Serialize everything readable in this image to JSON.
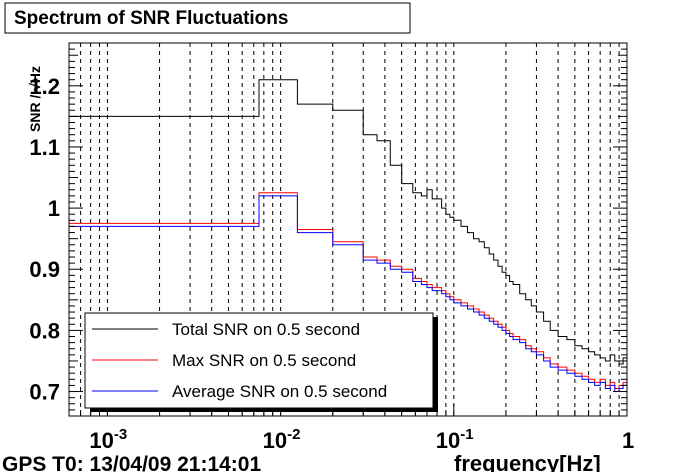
{
  "title": "Spectrum of SNR Fluctuations",
  "footer": {
    "gps": "GPS T0: 13/04/09 21:14:01"
  },
  "chart_data": {
    "type": "line",
    "title": "Spectrum of SNR Fluctuations",
    "xlabel": "frequency[Hz]",
    "ylabel": "SNR / √Hz",
    "xscale": "log",
    "xlim": [
      0.0006,
      1
    ],
    "ylim": [
      0.66,
      1.27
    ],
    "grid": "vertical-dashed",
    "legend_position": "bottom-left",
    "x_ticks": [
      {
        "value": 0.001,
        "base": "10",
        "exp": "-3"
      },
      {
        "value": 0.01,
        "base": "10",
        "exp": "-2"
      },
      {
        "value": 0.1,
        "base": "10",
        "exp": "-1"
      },
      {
        "value": 1,
        "base": "1",
        "exp": ""
      }
    ],
    "y_ticks": [
      {
        "value": 0.7,
        "label": "0.7"
      },
      {
        "value": 0.8,
        "label": "0.8"
      },
      {
        "value": 0.9,
        "label": "0.9"
      },
      {
        "value": 1.0,
        "label": "1"
      },
      {
        "value": 1.1,
        "label": "1.1"
      },
      {
        "value": 1.2,
        "label": "1.2"
      }
    ],
    "series": [
      {
        "name": "Total SNR on 0.5 second",
        "color": "#000000",
        "x": [
          0.0006,
          0.0075,
          0.0125,
          0.02,
          0.03,
          0.036,
          0.043,
          0.05,
          0.058,
          0.065,
          0.07,
          0.075,
          0.085,
          0.09,
          0.095,
          0.1,
          0.11,
          0.12,
          0.13,
          0.14,
          0.15,
          0.16,
          0.17,
          0.18,
          0.19,
          0.2,
          0.21,
          0.22,
          0.24,
          0.26,
          0.28,
          0.3,
          0.33,
          0.36,
          0.4,
          0.45,
          0.5,
          0.55,
          0.6,
          0.65,
          0.7,
          0.75,
          0.8,
          0.85,
          0.9,
          0.95,
          1.0
        ],
        "values": [
          1.15,
          1.21,
          1.17,
          1.16,
          1.12,
          1.11,
          1.07,
          1.04,
          1.025,
          1.02,
          1.03,
          1.015,
          1.0,
          0.99,
          0.985,
          0.98,
          0.97,
          0.96,
          0.95,
          0.945,
          0.935,
          0.925,
          0.915,
          0.905,
          0.895,
          0.89,
          0.88,
          0.875,
          0.86,
          0.85,
          0.84,
          0.83,
          0.815,
          0.8,
          0.79,
          0.785,
          0.775,
          0.77,
          0.765,
          0.76,
          0.755,
          0.75,
          0.76,
          0.75,
          0.745,
          0.755,
          0.75
        ]
      },
      {
        "name": "Max SNR on 0.5 second",
        "color": "#ff0000",
        "x": [
          0.0006,
          0.0075,
          0.0125,
          0.02,
          0.03,
          0.036,
          0.043,
          0.05,
          0.058,
          0.065,
          0.07,
          0.075,
          0.085,
          0.09,
          0.095,
          0.1,
          0.11,
          0.12,
          0.13,
          0.14,
          0.15,
          0.16,
          0.17,
          0.18,
          0.19,
          0.2,
          0.21,
          0.22,
          0.24,
          0.26,
          0.28,
          0.3,
          0.33,
          0.36,
          0.4,
          0.45,
          0.5,
          0.55,
          0.6,
          0.65,
          0.7,
          0.75,
          0.8,
          0.85,
          0.9,
          0.95,
          1.0
        ],
        "values": [
          0.975,
          1.025,
          0.965,
          0.945,
          0.92,
          0.915,
          0.905,
          0.9,
          0.885,
          0.88,
          0.875,
          0.87,
          0.865,
          0.86,
          0.855,
          0.85,
          0.845,
          0.84,
          0.835,
          0.83,
          0.825,
          0.82,
          0.815,
          0.81,
          0.805,
          0.8,
          0.795,
          0.79,
          0.785,
          0.775,
          0.77,
          0.765,
          0.755,
          0.745,
          0.74,
          0.735,
          0.73,
          0.725,
          0.72,
          0.715,
          0.72,
          0.71,
          0.715,
          0.705,
          0.71,
          0.715,
          0.71
        ]
      },
      {
        "name": "Average SNR on 0.5 second",
        "color": "#0000ff",
        "x": [
          0.0006,
          0.0075,
          0.0125,
          0.02,
          0.03,
          0.036,
          0.043,
          0.05,
          0.058,
          0.065,
          0.07,
          0.075,
          0.085,
          0.09,
          0.095,
          0.1,
          0.11,
          0.12,
          0.13,
          0.14,
          0.15,
          0.16,
          0.17,
          0.18,
          0.19,
          0.2,
          0.21,
          0.22,
          0.24,
          0.26,
          0.28,
          0.3,
          0.33,
          0.36,
          0.4,
          0.45,
          0.5,
          0.55,
          0.6,
          0.65,
          0.7,
          0.75,
          0.8,
          0.85,
          0.9,
          0.95,
          1.0
        ],
        "values": [
          0.97,
          1.02,
          0.96,
          0.94,
          0.915,
          0.91,
          0.9,
          0.895,
          0.88,
          0.875,
          0.87,
          0.865,
          0.86,
          0.855,
          0.85,
          0.845,
          0.84,
          0.835,
          0.83,
          0.825,
          0.82,
          0.815,
          0.81,
          0.805,
          0.8,
          0.795,
          0.79,
          0.785,
          0.78,
          0.77,
          0.765,
          0.76,
          0.75,
          0.74,
          0.735,
          0.73,
          0.725,
          0.72,
          0.715,
          0.71,
          0.715,
          0.705,
          0.71,
          0.7,
          0.705,
          0.71,
          0.705
        ]
      }
    ]
  }
}
